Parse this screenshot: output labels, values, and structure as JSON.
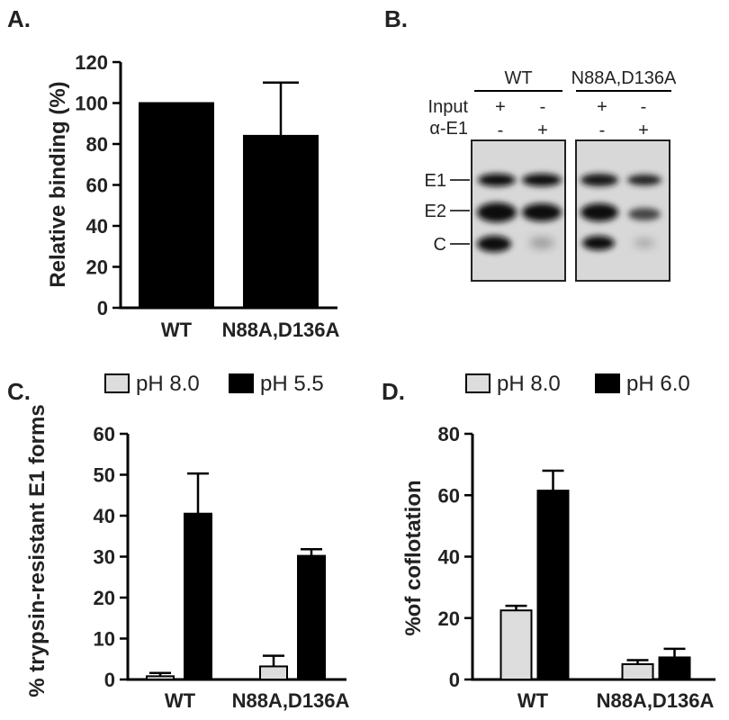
{
  "chart_data": [
    {
      "panel": "A.",
      "type": "bar",
      "ylabel": "Relative binding  (%)",
      "ylim": [
        0,
        120
      ],
      "yticks": [
        0,
        20,
        40,
        60,
        80,
        100,
        120
      ],
      "categories": [
        "WT",
        "N88A,D136A"
      ],
      "series": [
        {
          "values": [
            100,
            84
          ],
          "errors": [
            0,
            26
          ],
          "color": "#000000"
        }
      ]
    },
    {
      "panel": "B.",
      "type": "other",
      "groups": [
        "WT",
        "N88A,D136A"
      ],
      "rows": [
        {
          "label": "Input",
          "marks": [
            "+",
            "-",
            "+",
            "-"
          ]
        },
        {
          "label": "α-E1",
          "marks": [
            "-",
            "+",
            "-",
            "+"
          ]
        }
      ],
      "bands": [
        "E1",
        "E2",
        "C"
      ]
    },
    {
      "panel": "C.",
      "type": "bar",
      "ylabel": "% trypsin-resistant E1 forms",
      "ylim": [
        0,
        60
      ],
      "yticks": [
        0,
        10,
        20,
        30,
        40,
        50,
        60
      ],
      "categories": [
        "WT",
        "N88A,D136A"
      ],
      "legend_position": "top",
      "series": [
        {
          "name": "pH 8.0",
          "values": [
            0.8,
            3.2
          ],
          "errors": [
            0.8,
            2.6
          ],
          "color": "#dddddd"
        },
        {
          "name": "pH 5.5",
          "values": [
            40.5,
            30.2
          ],
          "errors": [
            9.8,
            1.6
          ],
          "color": "#000000"
        }
      ]
    },
    {
      "panel": "D.",
      "type": "bar",
      "ylabel": "%of coflotation",
      "ylim": [
        0,
        80
      ],
      "yticks": [
        0,
        20,
        40,
        60,
        80
      ],
      "categories": [
        "WT",
        "N88A,D136A"
      ],
      "legend_position": "top",
      "series": [
        {
          "name": "pH 8.0",
          "values": [
            22.5,
            5.0
          ],
          "errors": [
            1.5,
            1.3
          ],
          "color": "#dddddd"
        },
        {
          "name": "pH 6.0",
          "values": [
            61.5,
            7.2
          ],
          "errors": [
            6.5,
            2.8
          ],
          "color": "#000000"
        }
      ]
    }
  ]
}
